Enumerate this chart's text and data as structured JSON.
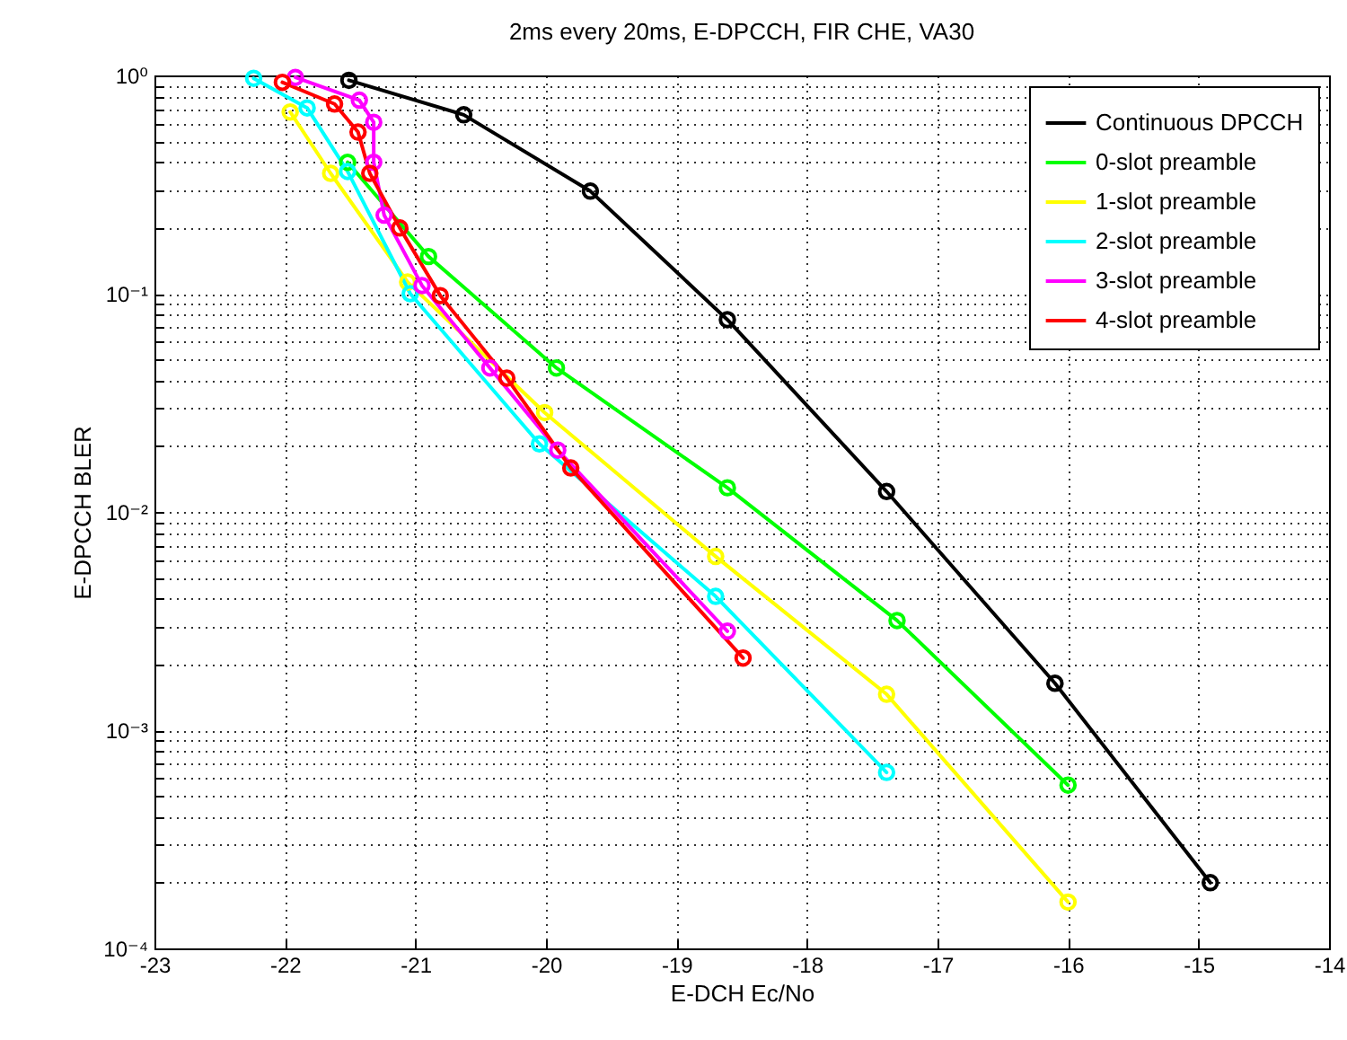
{
  "chart_data": {
    "type": "line",
    "title": "2ms every 20ms, E-DPCCH, FIR CHE, VA30",
    "xlabel": "E-DCH Ec/No",
    "ylabel": "E-DPCCH BLER",
    "log": true,
    "grid": true,
    "legend": "top right",
    "marker": "circle",
    "line_style": "solid",
    "xlim": [
      -23,
      -14
    ],
    "xticks": [
      -23,
      -22,
      -21,
      -20,
      -19,
      -18,
      -17,
      -16,
      -15,
      -14
    ],
    "ylim": [
      0.0001,
      1
    ],
    "yticks": [
      {
        "value": 0.0001,
        "label": "10⁻⁴"
      },
      {
        "value": 0.0002,
        "label": null
      },
      {
        "value": 0.0003,
        "label": null
      },
      {
        "value": 0.0004,
        "label": null
      },
      {
        "value": 0.0005,
        "label": null
      },
      {
        "value": 0.0006,
        "label": null
      },
      {
        "value": 0.0007,
        "label": null
      },
      {
        "value": 0.0008,
        "label": null
      },
      {
        "value": 0.0009,
        "label": null
      },
      {
        "value": 0.001,
        "label": "10⁻³"
      },
      {
        "value": 0.002,
        "label": null
      },
      {
        "value": 0.003,
        "label": null
      },
      {
        "value": 0.004,
        "label": null
      },
      {
        "value": 0.005,
        "label": null
      },
      {
        "value": 0.006,
        "label": null
      },
      {
        "value": 0.007,
        "label": null
      },
      {
        "value": 0.008,
        "label": null
      },
      {
        "value": 0.009,
        "label": null
      },
      {
        "value": 0.01,
        "label": "10⁻²"
      },
      {
        "value": 0.02,
        "label": null
      },
      {
        "value": 0.03,
        "label": null
      },
      {
        "value": 0.04,
        "label": null
      },
      {
        "value": 0.05,
        "label": null
      },
      {
        "value": 0.06,
        "label": null
      },
      {
        "value": 0.07,
        "label": null
      },
      {
        "value": 0.08,
        "label": null
      },
      {
        "value": 0.09,
        "label": null
      },
      {
        "value": 0.1,
        "label": "10⁻¹"
      },
      {
        "value": 0.2,
        "label": null
      },
      {
        "value": 0.3,
        "label": null
      },
      {
        "value": 0.4,
        "label": null
      },
      {
        "value": 0.5,
        "label": null
      },
      {
        "value": 0.6,
        "label": null
      },
      {
        "value": 0.7,
        "label": null
      },
      {
        "value": 0.8,
        "label": null
      },
      {
        "value": 0.9,
        "label": null
      },
      {
        "value": 1,
        "label": "10⁰"
      }
    ],
    "series": [
      {
        "name": "Continuous DPCCH",
        "color": "#000000",
        "x": [
          -21.51,
          -20.63,
          -19.66,
          -18.61,
          -17.39,
          -16.1,
          -14.91
        ],
        "values": [
          0.95,
          0.66,
          0.295,
          0.076,
          0.0124,
          0.00164,
          0.0002
        ]
      },
      {
        "name": "0-slot preamble",
        "color": "#00ff00",
        "x": [
          -21.52,
          -20.9,
          -19.92,
          -18.61,
          -17.31,
          -16.0
        ],
        "values": [
          0.4,
          0.148,
          0.0457,
          0.0129,
          0.00318,
          0.00056
        ]
      },
      {
        "name": "1-slot preamble",
        "color": "#ffff00",
        "x": [
          -21.96,
          -21.65,
          -21.06,
          -20.01,
          -18.7,
          -17.39,
          -16.0
        ],
        "values": [
          0.68,
          0.356,
          0.113,
          0.0285,
          0.00625,
          0.00146,
          0.000163
        ]
      },
      {
        "name": "2-slot preamble",
        "color": "#00ffff",
        "x": [
          -22.24,
          -21.83,
          -21.52,
          -21.04,
          -20.05,
          -18.7,
          -17.39
        ],
        "values": [
          0.97,
          0.71,
          0.363,
          0.1,
          0.0205,
          0.0041,
          0.00064
        ]
      },
      {
        "name": "3-slot preamble",
        "color": "#ff00ff",
        "x": [
          -21.92,
          -21.43,
          -21.32,
          -21.32,
          -21.24,
          -20.95,
          -20.43,
          -19.91,
          -18.61
        ],
        "values": [
          0.98,
          0.77,
          0.61,
          0.4,
          0.229,
          0.109,
          0.0457,
          0.0192,
          0.00284
        ]
      },
      {
        "name": "4-slot preamble",
        "color": "#ff0000",
        "x": [
          -22.02,
          -21.62,
          -21.44,
          -21.35,
          -21.12,
          -20.81,
          -20.3,
          -19.81,
          -18.49
        ],
        "values": [
          0.93,
          0.74,
          0.55,
          0.356,
          0.2,
          0.098,
          0.041,
          0.0159,
          0.00214
        ]
      }
    ]
  }
}
